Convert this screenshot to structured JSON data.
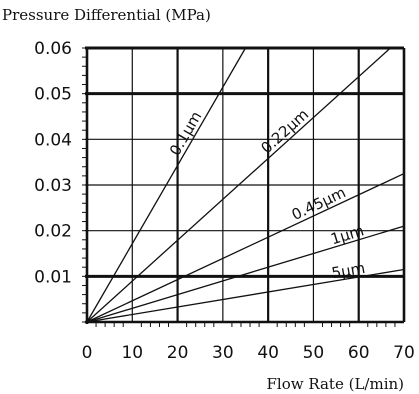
{
  "chart_data": {
    "type": "line",
    "title": "",
    "ylabel": "Pressure Differential (MPa)",
    "xlabel": "Flow Rate (L/min)",
    "xlim": [
      0,
      70
    ],
    "ylim": [
      0,
      0.06
    ],
    "x_ticks": [
      "0",
      "10",
      "20",
      "30",
      "40",
      "50",
      "60",
      "70"
    ],
    "y_ticks": [
      "0.01",
      "0.02",
      "0.03",
      "0.04",
      "0.05",
      "0.06"
    ],
    "grid": true,
    "series": [
      {
        "name": "0.1μm",
        "x": [
          0,
          35
        ],
        "y": [
          0,
          0.06
        ]
      },
      {
        "name": "0.22μm",
        "x": [
          0,
          67
        ],
        "y": [
          0,
          0.06
        ]
      },
      {
        "name": "0.45μm",
        "x": [
          0,
          70
        ],
        "y": [
          0,
          0.0325
        ]
      },
      {
        "name": "1μm",
        "x": [
          0,
          70
        ],
        "y": [
          0,
          0.021
        ]
      },
      {
        "name": "5μm",
        "x": [
          0,
          70
        ],
        "y": [
          0,
          0.0115
        ]
      }
    ]
  }
}
